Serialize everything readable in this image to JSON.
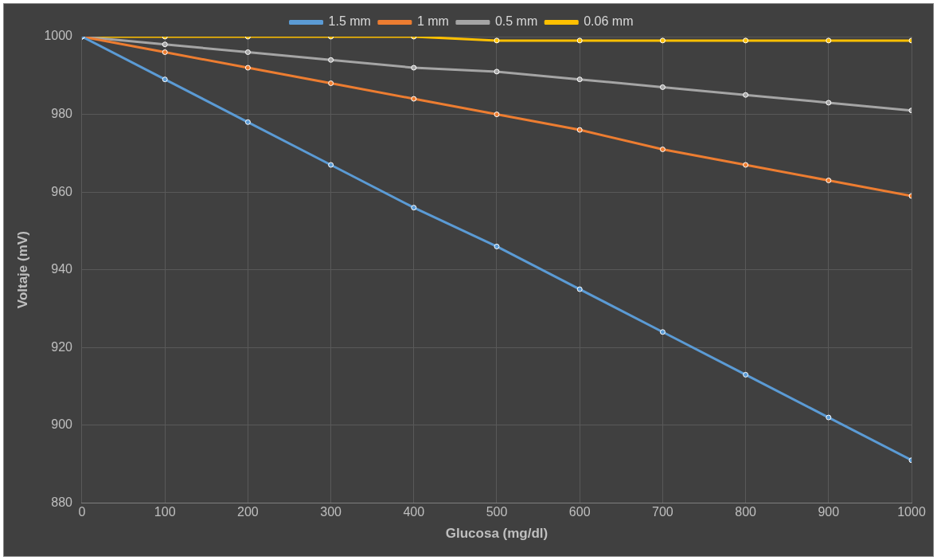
{
  "chart_data": {
    "type": "line",
    "xlabel": "Glucosa (mg/dl)",
    "ylabel": "Voltaje (mV)",
    "x": [
      0,
      100,
      200,
      300,
      400,
      500,
      600,
      700,
      800,
      900,
      1000
    ],
    "series": [
      {
        "name": "1.5 mm",
        "color": "#5b9bd5",
        "values": [
          1000,
          989,
          978,
          967,
          956,
          946,
          935,
          924,
          913,
          902,
          891
        ]
      },
      {
        "name": "1 mm",
        "color": "#ed7d31",
        "values": [
          1000,
          996,
          992,
          988,
          984,
          980,
          976,
          971,
          967,
          963,
          959
        ]
      },
      {
        "name": "0.5 mm",
        "color": "#a5a5a5",
        "values": [
          1000,
          998,
          996,
          994,
          992,
          991,
          989,
          987,
          985,
          983,
          981
        ]
      },
      {
        "name": "0.06 mm",
        "color": "#ffc000",
        "values": [
          1000,
          1000,
          1000,
          1000,
          1000,
          999,
          999,
          999,
          999,
          999,
          999
        ]
      }
    ],
    "xlim": [
      0,
      1000
    ],
    "xticks": [
      0,
      100,
      200,
      300,
      400,
      500,
      600,
      700,
      800,
      900,
      1000
    ],
    "ylim": [
      880,
      1000
    ],
    "yticks": [
      880,
      900,
      920,
      940,
      960,
      980,
      1000
    ],
    "grid": true,
    "legend": "top",
    "marker": "circle",
    "line_style": "solid"
  }
}
